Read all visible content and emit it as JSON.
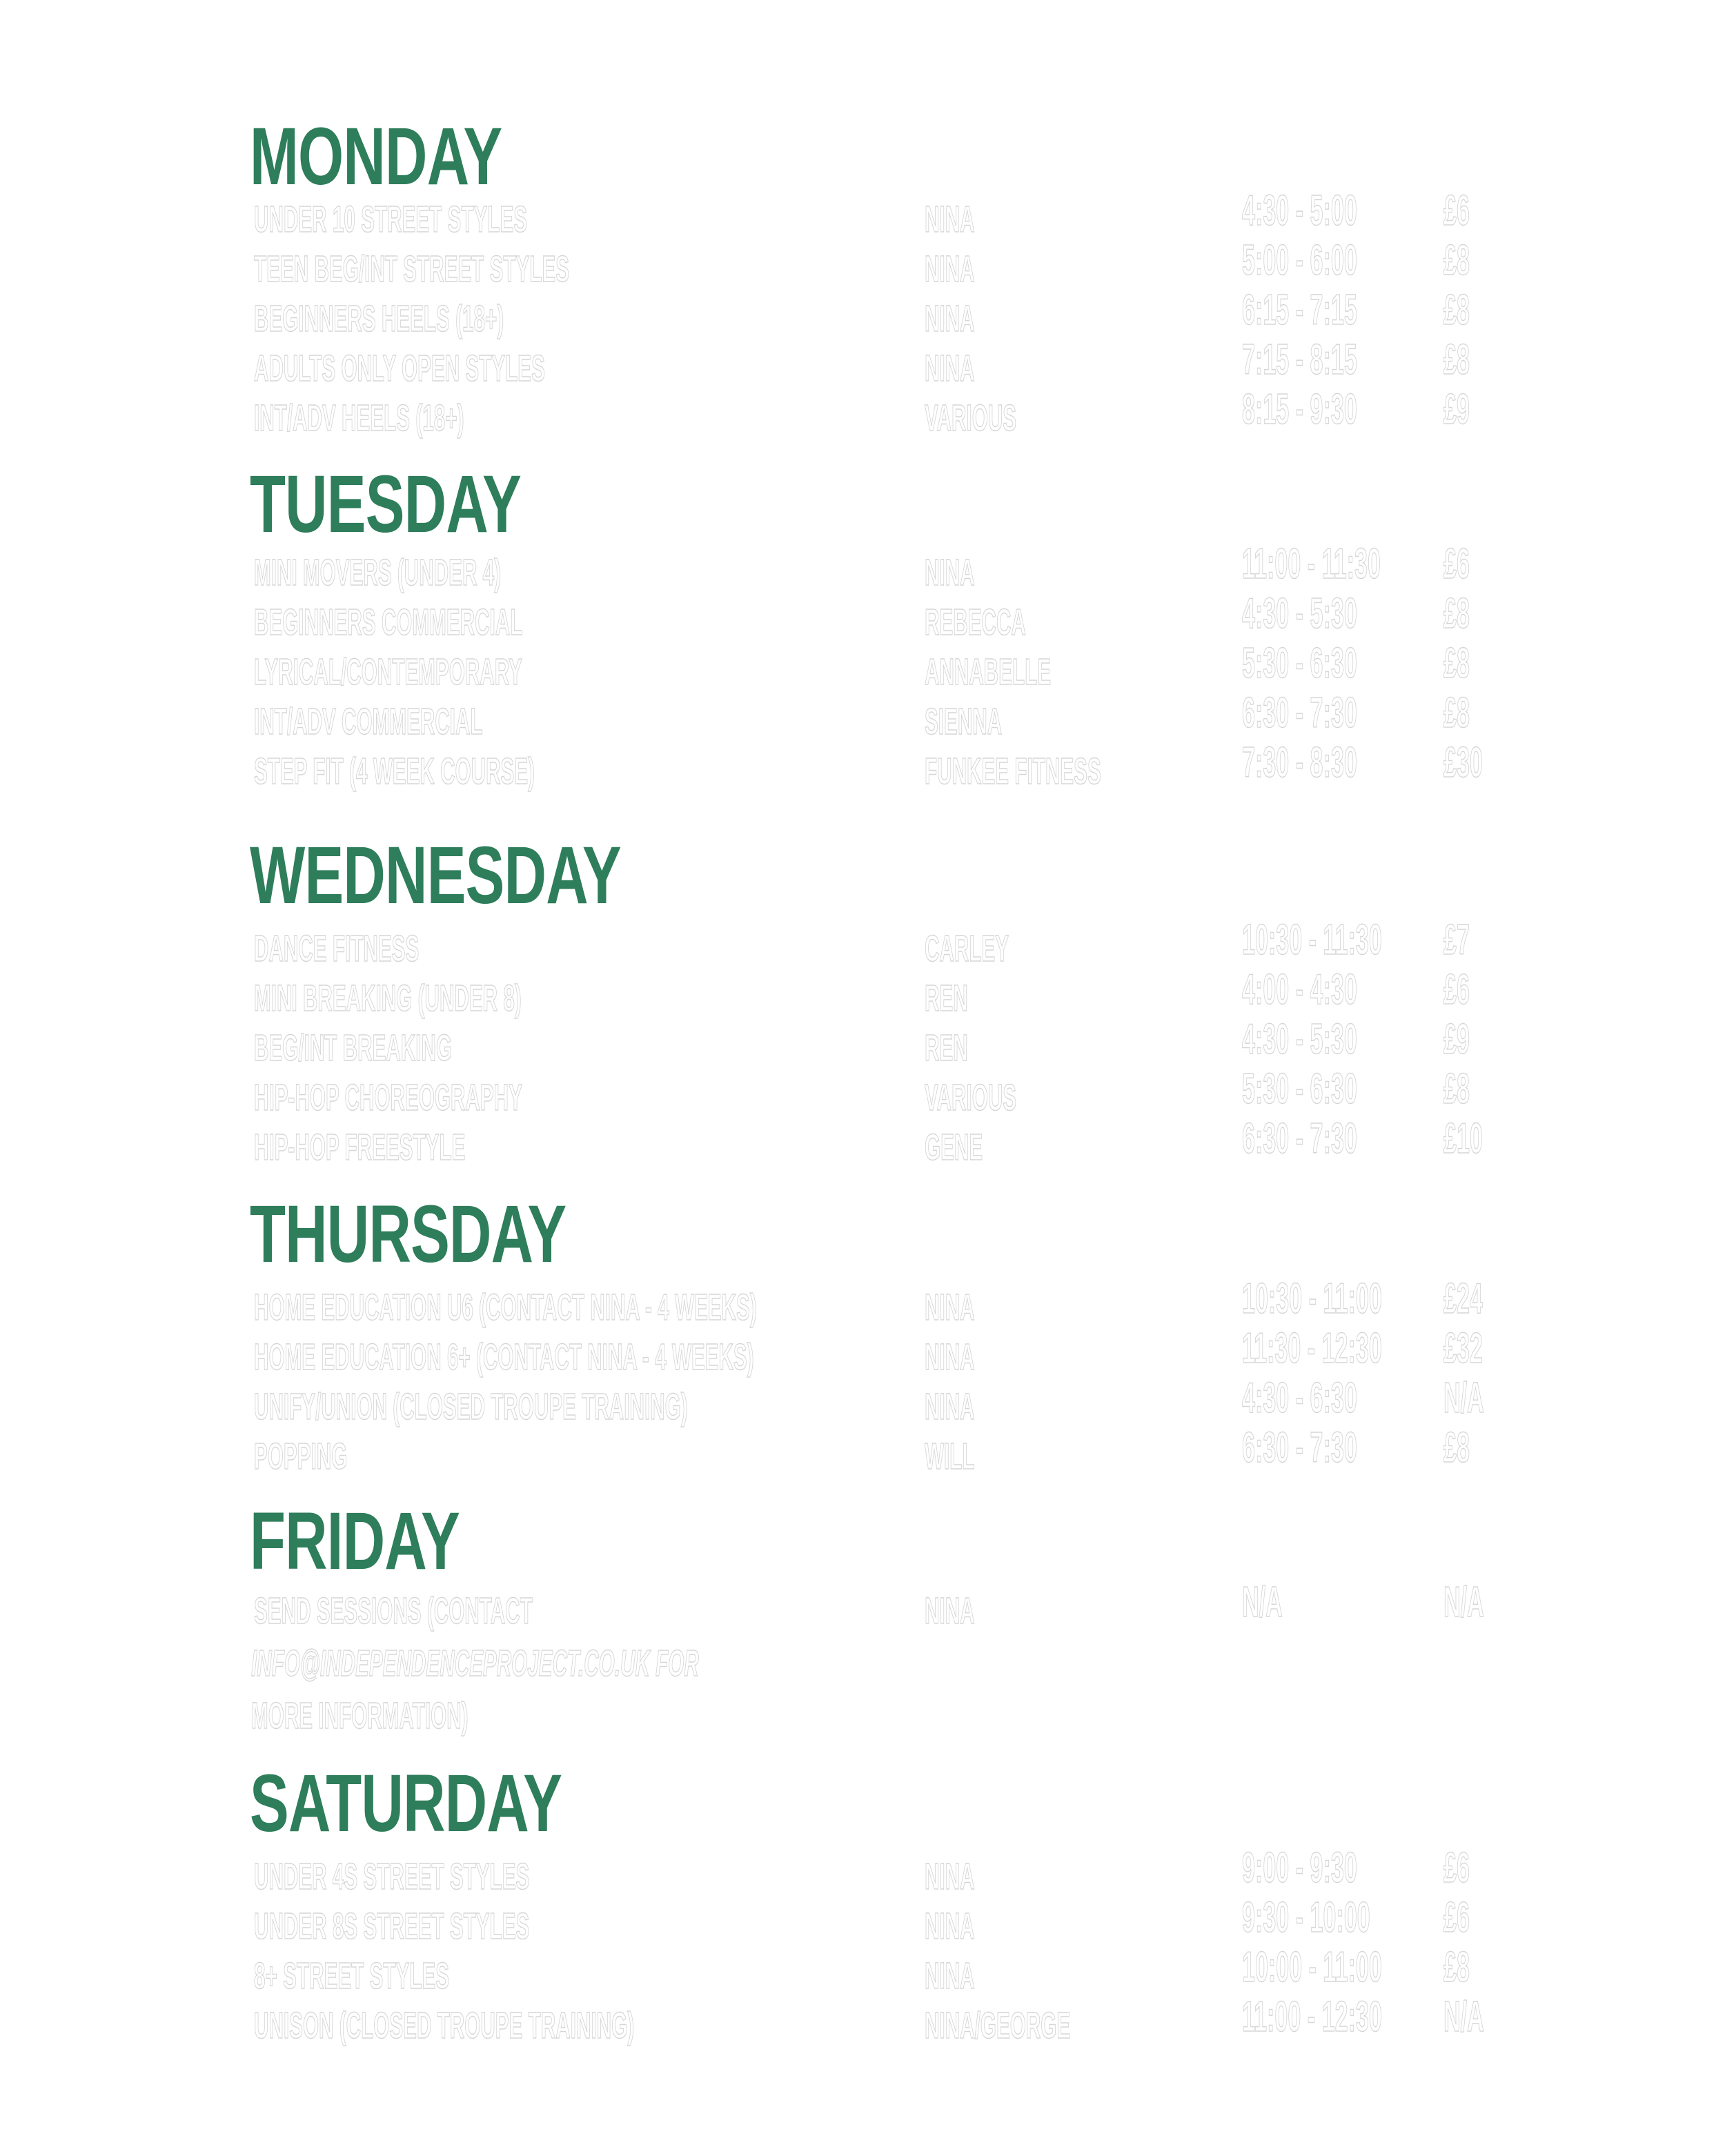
{
  "colors": {
    "heading": "#2e7d5b",
    "text": "#ffffff",
    "outline": "#d6d6d6"
  },
  "days": [
    {
      "title": "MONDAY",
      "rows": [
        {
          "class": "UNDER 10 STREET STYLES",
          "teacher": "NINA",
          "time": "4:30 - 5:00",
          "price": "£6"
        },
        {
          "class": "TEEN BEG/INT STREET STYLES",
          "teacher": "NINA",
          "time": "5:00 - 6:00",
          "price": "£8"
        },
        {
          "class": "BEGINNERS HEELS (18+)",
          "teacher": "NINA",
          "time": "6:15 - 7:15",
          "price": "£8"
        },
        {
          "class": "ADULTS ONLY OPEN STYLES",
          "teacher": "NINA",
          "time": "7:15 - 8:15",
          "price": "£8"
        },
        {
          "class": "INT/ADV HEELS (18+)",
          "teacher": "VARIOUS",
          "time": "8:15 - 9:30",
          "price": "£9"
        }
      ]
    },
    {
      "title": "TUESDAY",
      "rows": [
        {
          "class": "MINI MOVERS (UNDER 4)",
          "teacher": "NINA",
          "time": "11:00 - 11:30",
          "price": "£6"
        },
        {
          "class": "BEGINNERS COMMERCIAL",
          "teacher": "REBECCA",
          "time": "4:30 - 5:30",
          "price": "£8"
        },
        {
          "class": "LYRICAL/CONTEMPORARY",
          "teacher": "ANNABELLE",
          "time": "5:30 - 6:30",
          "price": "£8"
        },
        {
          "class": "INT/ADV COMMERCIAL",
          "teacher": "SIENNA",
          "time": "6:30 - 7:30",
          "price": "£8"
        },
        {
          "class": "STEP FIT (4 WEEK COURSE)",
          "teacher": "FUNKEE FITNESS",
          "time": "7:30 - 8:30",
          "price": "£30"
        }
      ]
    },
    {
      "title": "WEDNESDAY",
      "rows": [
        {
          "class": "DANCE FITNESS",
          "teacher": "CARLEY",
          "time": "10:30 - 11:30",
          "price": "£7"
        },
        {
          "class": "MINI BREAKING (UNDER 8)",
          "teacher": "REN",
          "time": "4:00 - 4:30",
          "price": "£6"
        },
        {
          "class": "BEG/INT BREAKING",
          "teacher": "REN",
          "time": "4:30 - 5:30",
          "price": "£9"
        },
        {
          "class": "HIP-HOP CHOREOGRAPHY",
          "teacher": "VARIOUS",
          "time": "5:30 - 6:30",
          "price": "£8"
        },
        {
          "class": "HIP-HOP FREESTYLE",
          "teacher": "GENE",
          "time": "6:30 - 7:30",
          "price": "£10"
        }
      ]
    },
    {
      "title": "THURSDAY",
      "rows": [
        {
          "class": "HOME EDUCATION U6 (CONTACT NINA - 4 WEEKS)",
          "teacher": "NINA",
          "time": "10:30 - 11:00",
          "price": "£24"
        },
        {
          "class": "HOME EDUCATION 6+ (CONTACT NINA - 4 WEEKS)",
          "teacher": "NINA",
          "time": "11:30 - 12:30",
          "price": "£32"
        },
        {
          "class": "UNIFY/UNION (CLOSED TROUPE TRAINING)",
          "teacher": "NINA",
          "time": "4:30 - 6:30",
          "price": "N/A"
        },
        {
          "class": "POPPING",
          "teacher": "WILL",
          "time": "6:30 - 7:30",
          "price": "£8"
        }
      ]
    },
    {
      "title": "FRIDAY",
      "rows": [
        {
          "class": "SEND SESSIONS (CONTACT",
          "teacher": "NINA",
          "time": "N/A",
          "price": "N/A"
        }
      ],
      "notes": [
        "INFO@INDEPENDENCEPROJECT.CO.UK FOR",
        "MORE INFORMATION)"
      ]
    },
    {
      "title": "SATURDAY",
      "rows": [
        {
          "class": "UNDER 4S STREET STYLES",
          "teacher": "NINA",
          "time": "9:00 - 9:30",
          "price": "£6"
        },
        {
          "class": "UNDER 8S STREET STYLES",
          "teacher": "NINA",
          "time": "9:30 - 10:00",
          "price": "£6"
        },
        {
          "class": "8+ STREET STYLES",
          "teacher": "NINA",
          "time": "10:00 - 11:00",
          "price": "£8"
        },
        {
          "class": "UNISON (CLOSED TROUPE TRAINING)",
          "teacher": "NINA/GEORGE",
          "time": "11:00 - 12:30",
          "price": "N/A"
        }
      ]
    }
  ]
}
